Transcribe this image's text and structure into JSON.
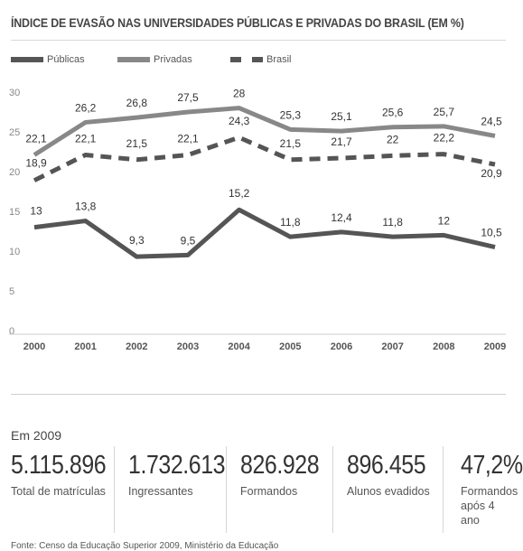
{
  "chart_data": {
    "type": "line",
    "title": "ÍNDICE DE EVASÃO NAS UNIVERSIDADES PÚBLICAS E PRIVADAS DO BRASIL (EM %)",
    "x": [
      "2000",
      "2001",
      "2002",
      "2003",
      "2004",
      "2005",
      "2006",
      "2007",
      "2008",
      "2009"
    ],
    "y_ticks": [
      "0",
      "5",
      "10",
      "15",
      "20",
      "25",
      "30"
    ],
    "ylim": [
      0,
      30
    ],
    "legend_position": "top-left",
    "series": [
      {
        "name": "Públicas",
        "values": [
          13,
          13.8,
          9.3,
          9.5,
          15.2,
          11.8,
          12.4,
          11.8,
          12,
          10.5
        ],
        "labels": [
          "13",
          "13,8",
          "9,3",
          "9,5",
          "15,2",
          "11,8",
          "12,4",
          "11,8",
          "12",
          "10,5"
        ],
        "color": "#555555",
        "dashed": false
      },
      {
        "name": "Privadas",
        "values": [
          22.1,
          26.2,
          26.8,
          27.5,
          28,
          25.3,
          25.1,
          25.6,
          25.7,
          24.5
        ],
        "labels": [
          "22,1",
          "26,2",
          "26,8",
          "27,5",
          "28",
          "25,3",
          "25,1",
          "25,6",
          "25,7",
          "24,5"
        ],
        "color": "#888888",
        "dashed": false
      },
      {
        "name": "Brasil",
        "values": [
          18.9,
          22.1,
          21.5,
          22.1,
          24.3,
          21.5,
          21.7,
          22,
          22.2,
          20.9
        ],
        "labels": [
          "18,9",
          "22,1",
          "21,5",
          "22,1",
          "24,3",
          "21,5",
          "21,7",
          "22",
          "22,2",
          "20,9"
        ],
        "color": "#555555",
        "dashed": true
      }
    ]
  },
  "summary": {
    "year_label": "Em 2009",
    "stats": [
      {
        "value": "5.115.896",
        "label": "Total de matrículas"
      },
      {
        "value": "1.732.613",
        "label": "Ingressantes"
      },
      {
        "value": "826.928",
        "label": "Formandos"
      },
      {
        "value": "896.455",
        "label": "Alunos evadidos"
      },
      {
        "value": "47,2%",
        "label": "Formandos após 4 ano"
      }
    ]
  },
  "source": "Fonte: Censo da Educação Superior 2009, Ministério da Educação"
}
